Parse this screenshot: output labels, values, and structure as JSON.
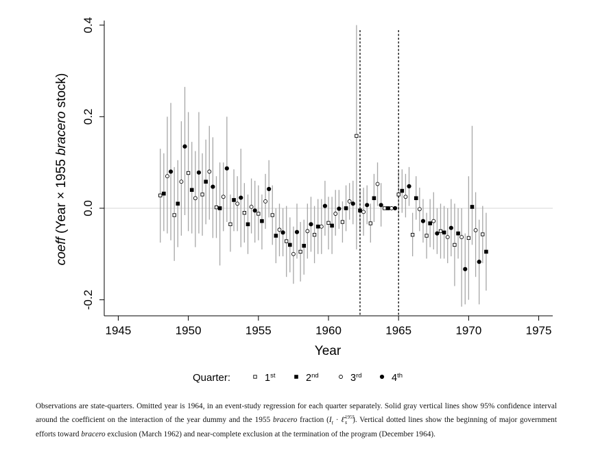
{
  "chart_data": {
    "type": "scatter",
    "title": "",
    "xlabel": "Year",
    "ylabel_parts": [
      "coeff",
      " (Year × 1955 ",
      "bracero",
      " stock)"
    ],
    "xlim": [
      1944,
      1976
    ],
    "ylim": [
      -0.235,
      0.41
    ],
    "xticks": [
      1945,
      1950,
      1955,
      1960,
      1965,
      1970,
      1975
    ],
    "yticks": [
      -0.2,
      0.0,
      0.2,
      0.4
    ],
    "ytick_labels": [
      "-0.2",
      "0.0",
      "0.2",
      "0.4"
    ],
    "reference_lines": {
      "horizontal_y": 0,
      "vertical_dotted_x": [
        1962.25,
        1965.0
      ]
    },
    "grid": false,
    "legend": {
      "placement": "bottom",
      "title": "Quarter:",
      "entries": [
        {
          "base": "1",
          "sup": "st",
          "marker": "open-square"
        },
        {
          "base": "2",
          "sup": "nd",
          "marker": "filled-square"
        },
        {
          "base": "3",
          "sup": "rd",
          "marker": "open-circle"
        },
        {
          "base": "4",
          "sup": "th",
          "marker": "filled-circle"
        }
      ]
    },
    "series": [
      {
        "marker": "open-square",
        "x": [
          1948.0,
          1949.0,
          1950.0,
          1951.0,
          1952.0,
          1953.0,
          1954.0,
          1955.0,
          1956.0,
          1957.0,
          1958.0,
          1959.0,
          1960.0,
          1961.0,
          1962.0,
          1963.0,
          1964.0,
          1965.0,
          1966.0,
          1967.0,
          1968.0,
          1969.0,
          1970.0,
          1971.0
        ],
        "y": [
          0.028,
          -0.015,
          0.077,
          0.03,
          0.002,
          -0.035,
          -0.01,
          -0.012,
          -0.015,
          -0.072,
          -0.095,
          -0.058,
          -0.032,
          -0.03,
          0.158,
          -0.033,
          0.0,
          0.03,
          -0.058,
          -0.06,
          -0.05,
          -0.08,
          -0.065,
          -0.057
        ],
        "ci_low": [
          -0.075,
          -0.115,
          -0.05,
          -0.06,
          -0.065,
          -0.095,
          -0.075,
          -0.07,
          -0.08,
          -0.15,
          -0.16,
          -0.12,
          -0.09,
          -0.075,
          -0.09,
          -0.075,
          0.0,
          -0.02,
          -0.105,
          -0.11,
          -0.11,
          -0.17,
          -0.2,
          -0.12
        ],
        "ci_high": [
          0.13,
          0.09,
          0.21,
          0.12,
          0.07,
          0.03,
          0.055,
          0.05,
          0.05,
          0.005,
          -0.03,
          0.005,
          0.025,
          0.015,
          0.4,
          0.01,
          0.0,
          0.08,
          -0.01,
          -0.01,
          0.01,
          0.01,
          0.07,
          0.005
        ]
      },
      {
        "marker": "filled-square",
        "x": [
          1948.25,
          1949.25,
          1950.25,
          1951.25,
          1952.25,
          1953.25,
          1954.25,
          1955.25,
          1956.25,
          1957.25,
          1958.25,
          1959.25,
          1960.25,
          1961.25,
          1962.25,
          1963.25,
          1964.25,
          1965.25,
          1966.25,
          1967.25,
          1968.25,
          1969.25,
          1970.25,
          1971.25
        ],
        "y": [
          0.032,
          0.01,
          0.04,
          0.058,
          0.0,
          0.018,
          -0.035,
          -0.028,
          -0.06,
          -0.08,
          -0.082,
          -0.04,
          -0.038,
          0.0,
          -0.005,
          0.022,
          0.0,
          0.038,
          0.022,
          -0.033,
          -0.053,
          -0.055,
          0.003,
          -0.095
        ],
        "ci_low": [
          -0.05,
          -0.085,
          -0.055,
          -0.035,
          -0.125,
          -0.05,
          -0.1,
          -0.09,
          -0.12,
          -0.14,
          -0.145,
          -0.1,
          -0.1,
          -0.05,
          -0.05,
          -0.03,
          0.0,
          -0.01,
          -0.025,
          -0.085,
          -0.11,
          -0.11,
          -0.08,
          -0.18
        ],
        "ci_high": [
          0.12,
          0.105,
          0.145,
          0.15,
          0.1,
          0.085,
          0.03,
          0.03,
          0.0,
          -0.02,
          -0.025,
          0.02,
          0.025,
          0.05,
          0.04,
          0.075,
          0.0,
          0.085,
          0.07,
          0.02,
          0.005,
          0.0,
          0.18,
          -0.01
        ]
      },
      {
        "marker": "open-circle",
        "x": [
          1948.5,
          1949.5,
          1950.5,
          1951.5,
          1952.5,
          1953.5,
          1954.5,
          1955.5,
          1956.5,
          1957.5,
          1958.5,
          1959.5,
          1960.5,
          1961.5,
          1962.5,
          1963.5,
          1964.5,
          1965.5,
          1966.5,
          1967.5,
          1968.5,
          1969.5,
          1970.5
        ],
        "y": [
          0.07,
          0.058,
          0.022,
          0.08,
          0.025,
          0.01,
          0.003,
          0.015,
          -0.047,
          -0.1,
          -0.05,
          -0.04,
          -0.012,
          0.015,
          -0.008,
          0.053,
          0.0,
          0.025,
          -0.002,
          -0.028,
          -0.063,
          -0.063,
          -0.048
        ],
        "ci_low": [
          -0.055,
          -0.06,
          -0.085,
          -0.025,
          -0.05,
          -0.05,
          -0.055,
          -0.045,
          -0.105,
          -0.165,
          -0.11,
          -0.1,
          -0.06,
          -0.025,
          -0.06,
          0.005,
          0.0,
          -0.02,
          -0.05,
          -0.09,
          -0.12,
          -0.215,
          -0.15
        ],
        "ci_high": [
          0.2,
          0.19,
          0.125,
          0.18,
          0.1,
          0.07,
          0.065,
          0.075,
          0.01,
          -0.04,
          0.01,
          0.02,
          0.04,
          0.055,
          0.045,
          0.1,
          0.0,
          0.075,
          0.045,
          0.035,
          0.0,
          0.0,
          0.035
        ]
      },
      {
        "marker": "filled-circle",
        "x": [
          1948.75,
          1949.75,
          1950.75,
          1951.75,
          1952.75,
          1953.75,
          1954.75,
          1955.75,
          1956.75,
          1957.75,
          1958.75,
          1959.75,
          1960.75,
          1961.75,
          1962.75,
          1963.75,
          1964.75,
          1965.75,
          1966.75,
          1967.75,
          1968.75,
          1969.75,
          1970.75
        ],
        "y": [
          0.08,
          0.135,
          0.078,
          0.047,
          0.087,
          0.023,
          -0.005,
          0.042,
          -0.053,
          -0.052,
          -0.035,
          0.005,
          -0.001,
          0.01,
          0.007,
          0.007,
          0.0,
          0.048,
          -0.028,
          -0.055,
          -0.043,
          -0.133,
          -0.117
        ],
        "ci_low": [
          -0.07,
          -0.015,
          -0.055,
          -0.065,
          -0.03,
          -0.085,
          -0.075,
          -0.02,
          -0.105,
          -0.11,
          -0.095,
          -0.06,
          -0.045,
          -0.035,
          -0.035,
          -0.04,
          0.0,
          0.005,
          -0.075,
          -0.1,
          -0.105,
          -0.21,
          -0.21
        ],
        "ci_high": [
          0.23,
          0.265,
          0.21,
          0.155,
          0.2,
          0.13,
          0.06,
          0.105,
          0.0,
          0.01,
          0.025,
          0.06,
          0.04,
          0.06,
          0.05,
          0.055,
          0.0,
          0.09,
          0.02,
          0.0,
          0.02,
          -0.055,
          -0.025
        ]
      }
    ]
  },
  "caption": {
    "p1": "Observations are state-quarters. Omitted year is 1964, in an event-study regression for each quarter separately. Solid gray vertical lines show 95% confidence interval around the coefficient on the interaction of the year dummy and the 1955 ",
    "bracero1": "bracero",
    "p2": " fraction ",
    "formula_open": "(",
    "formula_I": "I",
    "formula_t": "t",
    "formula_dot": " · ",
    "formula_ell": "ℓ̄",
    "formula_s": "s",
    "formula_sup": "1955",
    "formula_close": ")",
    "p3": ". Vertical dotted lines show the beginning of major government efforts toward ",
    "bracero2": "bracero",
    "p4": " exclusion (March 1962) and near-complete exclusion at the termination of the program (December 1964)."
  }
}
